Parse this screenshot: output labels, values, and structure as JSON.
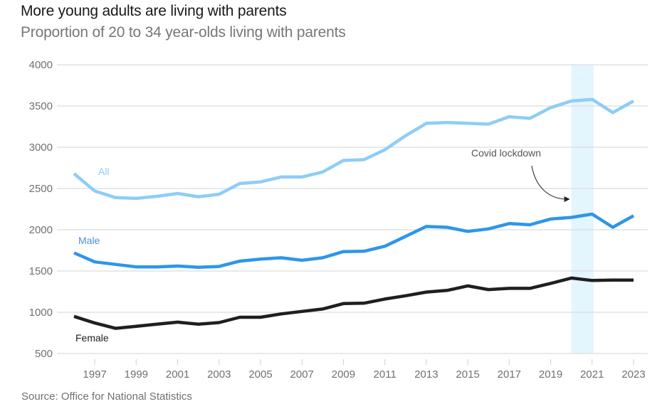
{
  "chart_data": {
    "type": "line",
    "title": "More young adults are living with parents",
    "subtitle": "Proportion of 20 to 34 year-olds living with parents",
    "source": "Source: Office for National Statistics",
    "xlabel": "",
    "ylabel": "",
    "ylim": [
      500,
      4000
    ],
    "yticks": [
      4000,
      3500,
      3000,
      2500,
      2000,
      1500,
      1000,
      500
    ],
    "xlim": [
      1996,
      2023
    ],
    "xticks": [
      1997,
      1999,
      2001,
      2003,
      2005,
      2007,
      2009,
      2011,
      2013,
      2015,
      2017,
      2019,
      2021,
      2023
    ],
    "grid": true,
    "legend": "inline-labels",
    "x": [
      1996,
      1997,
      1998,
      1999,
      2000,
      2001,
      2002,
      2003,
      2004,
      2005,
      2006,
      2007,
      2008,
      2009,
      2010,
      2011,
      2012,
      2013,
      2014,
      2015,
      2016,
      2017,
      2018,
      2019,
      2020,
      2021,
      2022,
      2023
    ],
    "series": [
      {
        "name": "All",
        "color": "#8ecdf7",
        "values": [
          2680,
          2470,
          2390,
          2380,
          2405,
          2440,
          2400,
          2430,
          2560,
          2580,
          2640,
          2640,
          2700,
          2840,
          2850,
          2970,
          3140,
          3290,
          3300,
          3290,
          3280,
          3370,
          3350,
          3480,
          3560,
          3580,
          3420,
          3560
        ]
      },
      {
        "name": "Male",
        "color": "#2e96ea",
        "label_color": "#4a8fd9",
        "values": [
          1720,
          1610,
          1580,
          1550,
          1550,
          1560,
          1545,
          1555,
          1620,
          1645,
          1660,
          1630,
          1660,
          1735,
          1740,
          1800,
          1920,
          2040,
          2030,
          1980,
          2010,
          2075,
          2060,
          2130,
          2150,
          2190,
          2030,
          2170
        ]
      },
      {
        "name": "Female",
        "color": "#1f1f1f",
        "values": [
          950,
          870,
          805,
          830,
          855,
          880,
          855,
          875,
          940,
          940,
          980,
          1010,
          1040,
          1105,
          1110,
          1160,
          1200,
          1245,
          1265,
          1320,
          1275,
          1290,
          1290,
          1350,
          1415,
          1385,
          1390,
          1390
        ]
      }
    ],
    "highlight": {
      "label": "Covid lockdown",
      "from": 2020,
      "to": 2021,
      "color": "#e3f5fd"
    },
    "annotations": [
      {
        "text": "Covid lockdown",
        "arrow_to_year": 2020
      }
    ]
  }
}
